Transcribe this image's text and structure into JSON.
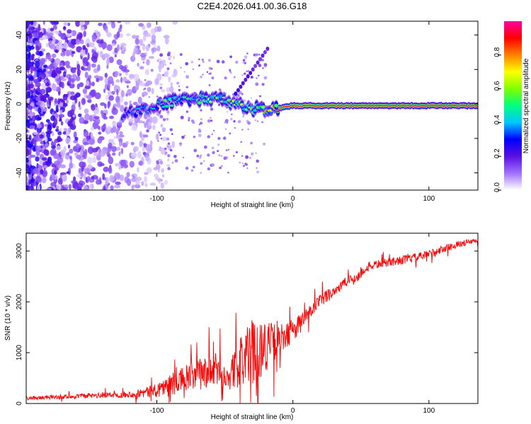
{
  "title": "C2E4.2026.041.00.36.G18",
  "chart_data": [
    {
      "type": "heatmap",
      "xlabel": "Height of straight line (km)",
      "ylabel": "Frequency (Hz)",
      "xlim": [
        -196,
        136
      ],
      "ylim": [
        -50,
        48
      ],
      "xticks": [
        "-100",
        "0",
        "100"
      ],
      "xtick_values": [
        -100,
        0,
        100
      ],
      "yticks": [
        "-40",
        "-20",
        "0",
        "20",
        "40"
      ],
      "ytick_values": [
        -40,
        -20,
        0,
        20,
        40
      ],
      "colorbar": {
        "label": "Normalized spectral amplitude",
        "range": [
          0,
          1
        ],
        "ticks": [
          "0.0",
          "0.2",
          "0.4",
          "0.6",
          "0.8"
        ],
        "tick_values": [
          0.0,
          0.2,
          0.4,
          0.6,
          0.8
        ],
        "colors": [
          "#ffffff",
          "#a070ff",
          "#5a10e0",
          "#0000ff",
          "#00c8ff",
          "#00ff80",
          "#80ff00",
          "#ffff00",
          "#ff8000",
          "#ff0000",
          "#ff00a0"
        ]
      },
      "ridge": [
        {
          "x": -125,
          "freq": -6,
          "amp": 0.3
        },
        {
          "x": -110,
          "freq": -3,
          "amp": 0.4
        },
        {
          "x": -90,
          "freq": 1,
          "amp": 0.5
        },
        {
          "x": -70,
          "freq": 3,
          "amp": 0.55
        },
        {
          "x": -55,
          "freq": 4,
          "amp": 0.6
        },
        {
          "x": -45,
          "freq": 0,
          "amp": 0.55
        },
        {
          "x": -30,
          "freq": -3,
          "amp": 0.65
        },
        {
          "x": -15,
          "freq": -3,
          "amp": 0.8
        },
        {
          "x": 0,
          "freq": -1,
          "amp": 0.95
        },
        {
          "x": 20,
          "freq": -1,
          "amp": 0.9
        },
        {
          "x": 50,
          "freq": -1,
          "amp": 0.95
        },
        {
          "x": 100,
          "freq": -1,
          "amp": 1.0
        },
        {
          "x": 136,
          "freq": -1,
          "amp": 1.0
        }
      ]
    },
    {
      "type": "line",
      "xlabel": "Height of straight line (km)",
      "ylabel": "SNR (10 * v/v)",
      "xlim": [
        -196,
        136
      ],
      "ylim": [
        0,
        3350
      ],
      "xticks": [
        "-100",
        "0",
        "100"
      ],
      "xtick_values": [
        -100,
        0,
        100
      ],
      "yticks": [
        "0",
        "1000",
        "2000",
        "3000"
      ],
      "ytick_values": [
        0,
        1000,
        2000,
        3000
      ],
      "series": [
        {
          "name": "SNR",
          "color": "#ff0000",
          "x": [
            -196,
            -180,
            -160,
            -140,
            -120,
            -105,
            -95,
            -85,
            -75,
            -65,
            -55,
            -48,
            -42,
            -36,
            -30,
            -24,
            -18,
            -12,
            -6,
            0,
            8,
            16,
            24,
            32,
            40,
            48,
            56,
            64,
            72,
            80,
            88,
            96,
            104,
            112,
            120,
            128,
            136
          ],
          "values": [
            100,
            120,
            140,
            160,
            180,
            230,
            320,
            420,
            520,
            600,
            650,
            500,
            700,
            900,
            1000,
            1100,
            1150,
            1200,
            1300,
            1450,
            1650,
            1900,
            2100,
            2250,
            2400,
            2500,
            2700,
            2750,
            2780,
            2820,
            2860,
            2900,
            2980,
            3050,
            3120,
            3170,
            3200
          ],
          "noise": [
            60,
            70,
            80,
            90,
            100,
            200,
            300,
            400,
            500,
            550,
            600,
            400,
            700,
            900,
            1100,
            1000,
            800,
            600,
            450,
            380,
            300,
            260,
            220,
            200,
            180,
            160,
            150,
            140,
            140,
            140,
            140,
            140,
            130,
            120,
            110,
            100,
            100
          ]
        }
      ]
    }
  ]
}
